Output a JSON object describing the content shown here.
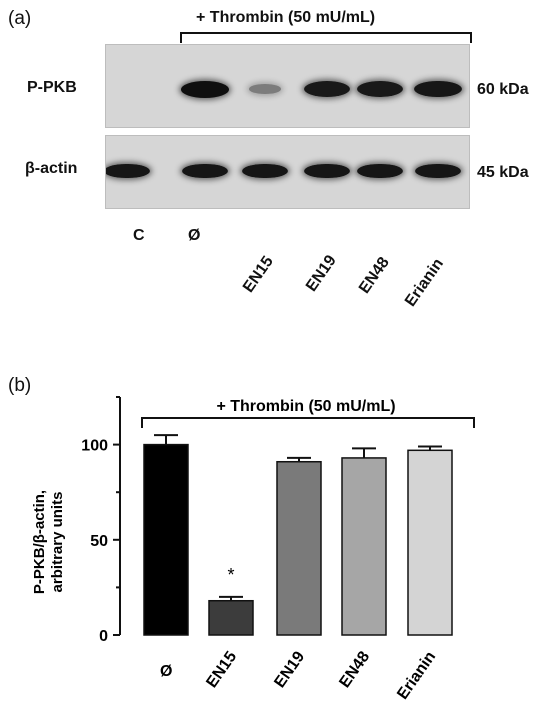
{
  "panel_a": {
    "label": "(a)",
    "treatment": "+ Thrombin (50 mU/mL)",
    "rows": [
      {
        "name": "P-PKB",
        "kda": "60 kDa",
        "intensity": [
          0,
          1.0,
          0.15,
          0.92,
          0.92,
          0.95
        ]
      },
      {
        "name": "β-actin",
        "kda": "45 kDa",
        "intensity": [
          0.95,
          0.95,
          0.95,
          0.95,
          0.95,
          0.95
        ]
      }
    ],
    "lanes": [
      "C",
      "Ø",
      "EN15",
      "EN19",
      "EN48",
      "Erianin"
    ]
  },
  "panel_b": {
    "label": "(b)",
    "treatment": "+ Thrombin (50 mU/mL)",
    "significance": "*",
    "colors": [
      "#000000",
      "#3c3c3c",
      "#7a7a7a",
      "#a6a6a6",
      "#d4d4d4"
    ]
  },
  "chart_data": {
    "type": "bar",
    "categories": [
      "Ø",
      "EN15",
      "EN19",
      "EN48",
      "Erianin"
    ],
    "values": [
      100,
      18,
      91,
      93,
      97
    ],
    "errors": [
      5,
      2,
      2,
      5,
      2
    ],
    "ylabel_line1": "P-PKB/β-actin,",
    "ylabel_line2": "arbitrary units",
    "yticks": [
      0,
      50,
      100
    ],
    "ylim": [
      0,
      125
    ]
  }
}
